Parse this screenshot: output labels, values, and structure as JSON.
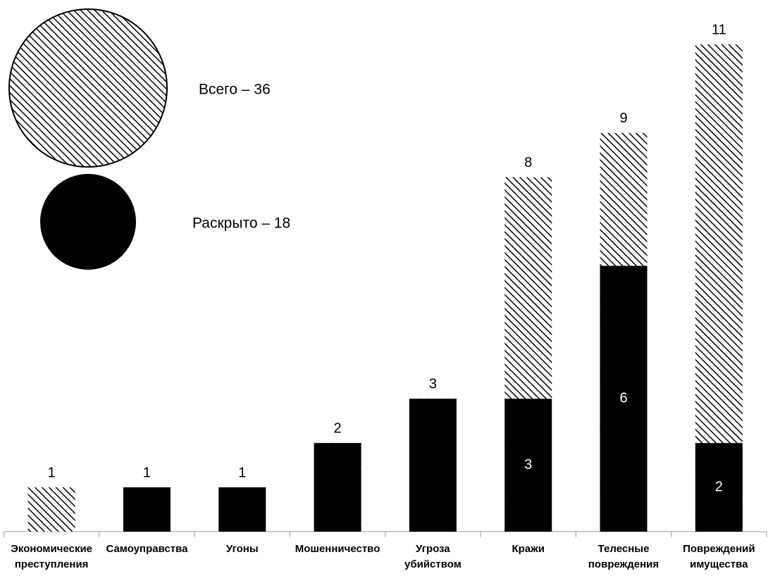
{
  "chart_data": {
    "type": "bar",
    "categories": [
      "Экономические преступления",
      "Самоуправства",
      "Угоны",
      "Мошенничество",
      "Угроза убийством",
      "Кражи",
      "Телесные повреждения",
      "Повреждений имущества"
    ],
    "series": [
      {
        "name": "Всего – 36",
        "color": "#000000",
        "fill": "hatch",
        "values": [
          1,
          1,
          1,
          2,
          3,
          8,
          9,
          11
        ]
      },
      {
        "name": "Раскрыто – 18",
        "color": "#000000",
        "fill": "solid",
        "values": [
          0,
          1,
          1,
          2,
          3,
          3,
          6,
          2
        ]
      }
    ],
    "ylim": [
      0,
      11
    ]
  }
}
